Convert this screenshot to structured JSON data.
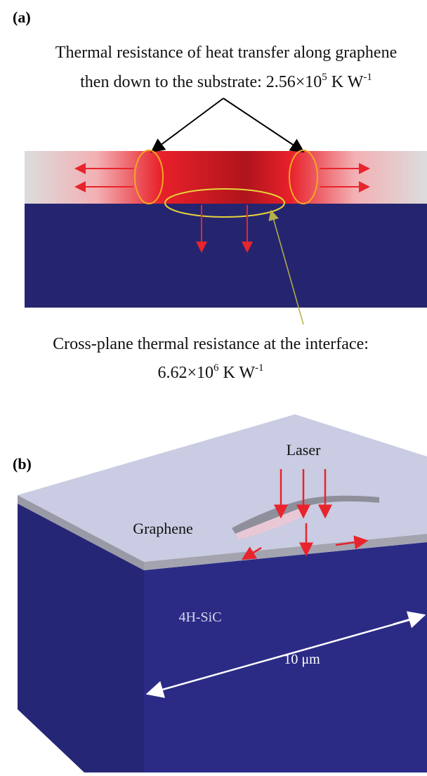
{
  "panel_a": {
    "label": "(a)",
    "top_caption": {
      "line1": "Thermal resistance of heat transfer along graphene",
      "line2_text": "then down to the substrate: 2.56×10",
      "line2_exp": "5",
      "line2_unit": "K W",
      "line2_unit_exp": "-1"
    },
    "bottom_caption": {
      "line1": "Cross-plane thermal resistance at the interface:",
      "line2_text": "6.62×10",
      "line2_exp": "6",
      "line2_unit": "K W",
      "line2_unit_exp": "-1"
    }
  },
  "panel_b": {
    "label": "(b)",
    "laser": "Laser",
    "graphene": "Graphene",
    "substrate": "4H-SiC",
    "scale": "10 μm"
  }
}
